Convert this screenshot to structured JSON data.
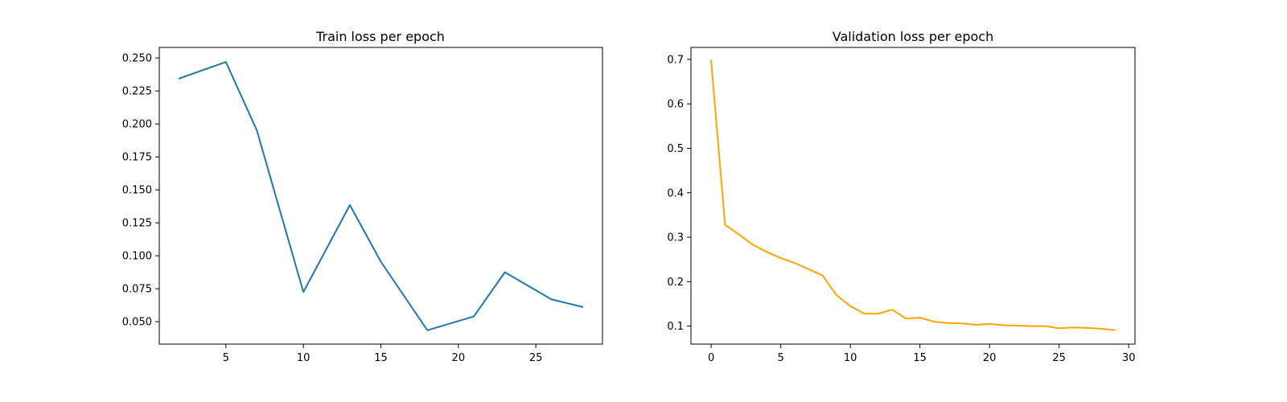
{
  "chart_data": [
    {
      "type": "line",
      "title": "Train loss per epoch",
      "xlabel": "",
      "ylabel": "",
      "xlim": [
        0.7,
        29.3
      ],
      "ylim": [
        0.033,
        0.258
      ],
      "xticks": [
        5,
        10,
        15,
        20,
        25
      ],
      "yticks": [
        0.05,
        0.075,
        0.1,
        0.125,
        0.15,
        0.175,
        0.2,
        0.225,
        0.25
      ],
      "ytick_labels": [
        "0.050",
        "0.075",
        "0.100",
        "0.125",
        "0.150",
        "0.175",
        "0.200",
        "0.225",
        "0.250"
      ],
      "grid": false,
      "series": [
        {
          "color": "#1f77b4",
          "x": [
            2,
            5,
            7,
            10,
            13,
            15,
            18,
            21,
            23,
            26,
            28
          ],
          "y": [
            0.2345,
            0.247,
            0.195,
            0.0725,
            0.1385,
            0.0955,
            0.0435,
            0.054,
            0.0875,
            0.067,
            0.0612
          ]
        }
      ]
    },
    {
      "type": "line",
      "title": "Validation loss per epoch",
      "xlabel": "",
      "ylabel": "",
      "xlim": [
        -1.45,
        30.45
      ],
      "ylim": [
        0.0595,
        0.727
      ],
      "xticks": [
        0,
        5,
        10,
        15,
        20,
        25,
        30
      ],
      "yticks": [
        0.1,
        0.2,
        0.3,
        0.4,
        0.5,
        0.6,
        0.7
      ],
      "ytick_labels": [
        "0.1",
        "0.2",
        "0.3",
        "0.4",
        "0.5",
        "0.6",
        "0.7"
      ],
      "grid": false,
      "series": [
        {
          "color": "#ffa500",
          "x": [
            0,
            1,
            2,
            3,
            4,
            5,
            6,
            7,
            8,
            9,
            10,
            11,
            12,
            13,
            14,
            15,
            16,
            17,
            18,
            19,
            20,
            21,
            22,
            23,
            24,
            25,
            26,
            27,
            28,
            29
          ],
          "y": [
            0.697,
            0.328,
            0.306,
            0.283,
            0.267,
            0.253,
            0.242,
            0.228,
            0.214,
            0.17,
            0.145,
            0.128,
            0.128,
            0.137,
            0.117,
            0.119,
            0.11,
            0.107,
            0.106,
            0.103,
            0.105,
            0.102,
            0.101,
            0.1,
            0.1,
            0.095,
            0.097,
            0.096,
            0.094,
            0.091
          ]
        }
      ]
    }
  ]
}
